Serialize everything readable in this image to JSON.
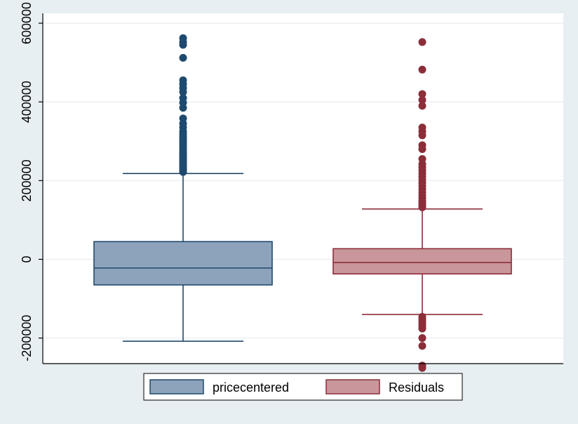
{
  "chart_data": {
    "type": "box",
    "ylim": [
      -265000,
      625000
    ],
    "y_ticks": [
      {
        "value": -200000,
        "label": "-200000"
      },
      {
        "value": 0,
        "label": "0"
      },
      {
        "value": 200000,
        "label": "200000"
      },
      {
        "value": 400000,
        "label": "400000"
      },
      {
        "value": 600000,
        "label": "600000"
      }
    ],
    "grid": true,
    "legend_position": "bottom",
    "series": [
      {
        "name": "pricecentered",
        "fill": "#8da3bb",
        "stroke": "#1f4a6e",
        "whisker_low": -208000,
        "q1": -65000,
        "median": -22000,
        "q3": 45000,
        "whisker_high": 218000,
        "outliers": [
          222000,
          226000,
          230000,
          234000,
          238000,
          242000,
          246000,
          250000,
          254000,
          258000,
          262000,
          266000,
          270000,
          276000,
          282000,
          288000,
          294000,
          300000,
          306000,
          312000,
          318000,
          325000,
          335000,
          345000,
          358000,
          385000,
          398000,
          410000,
          425000,
          435000,
          445000,
          455000,
          512000,
          545000,
          552000,
          562000
        ]
      },
      {
        "name": "Residuals",
        "fill": "#c8969b",
        "stroke": "#8b2e3a",
        "whisker_low": -140000,
        "q1": -37000,
        "median": -8000,
        "q3": 27000,
        "whisker_high": 128000,
        "outliers": [
          132000,
          136000,
          142000,
          148000,
          155000,
          162000,
          170000,
          178000,
          186000,
          194000,
          202000,
          210000,
          218000,
          226000,
          234000,
          242000,
          255000,
          280000,
          290000,
          315000,
          325000,
          335000,
          390000,
          405000,
          420000,
          482000,
          552000,
          -146000,
          -152000,
          -158000,
          -164000,
          -170000,
          -176000,
          -200000,
          -220000,
          -270000,
          -276000
        ]
      }
    ]
  }
}
